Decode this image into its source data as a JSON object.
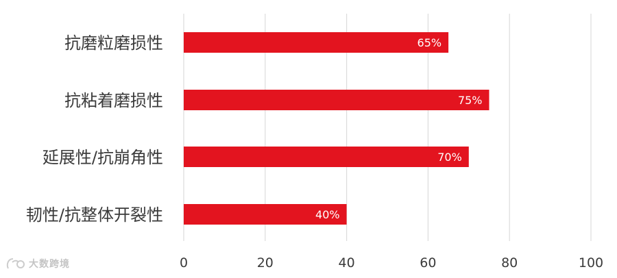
{
  "chart_data": {
    "type": "bar",
    "orientation": "horizontal",
    "categories": [
      "抗磨粒磨损性",
      "抗粘着磨损性",
      "延展性/抗崩角性",
      "韧性/抗整体开裂性"
    ],
    "values": [
      65,
      75,
      70,
      40
    ],
    "data_labels": [
      "65%",
      "75%",
      "70%",
      "40%"
    ],
    "xlim": [
      0,
      100
    ],
    "x_ticks": [
      0,
      20,
      40,
      60,
      80,
      100
    ],
    "grid": true,
    "legend": "none",
    "bar_color": "#e3141f",
    "grid_color": "#dcdcdc"
  },
  "watermark": {
    "text": "大数跨境",
    "logo": "watermark-logo-icon"
  }
}
